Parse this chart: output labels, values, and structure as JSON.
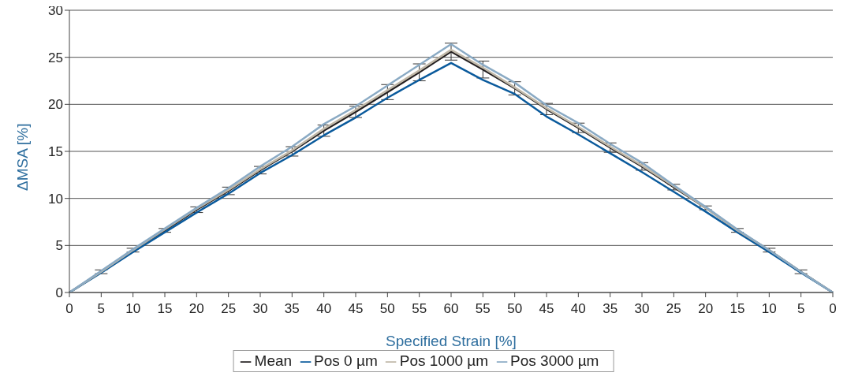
{
  "chart_data": {
    "type": "line",
    "xlabel": "Specified Strain [%]",
    "ylabel": "ΔMSA [%]",
    "categories": [
      "0",
      "5",
      "10",
      "15",
      "20",
      "25",
      "30",
      "35",
      "40",
      "45",
      "50",
      "55",
      "60",
      "55",
      "50",
      "45",
      "40",
      "35",
      "30",
      "25",
      "20",
      "15",
      "10",
      "5",
      "0"
    ],
    "series": [
      {
        "name": "Mean",
        "color": "#231f20",
        "values": [
          0,
          2.2,
          4.5,
          6.6,
          8.8,
          10.8,
          13.0,
          15.0,
          17.2,
          19.2,
          21.3,
          23.4,
          25.6,
          23.7,
          21.7,
          19.5,
          17.5,
          15.4,
          13.4,
          11.2,
          9.0,
          6.6,
          4.5,
          2.2,
          0
        ],
        "errors": [
          0,
          0.2,
          0.2,
          0.2,
          0.3,
          0.4,
          0.4,
          0.5,
          0.6,
          0.6,
          0.8,
          0.9,
          0.9,
          0.9,
          0.7,
          0.6,
          0.5,
          0.5,
          0.4,
          0.3,
          0.2,
          0.2,
          0.2,
          0.2,
          0
        ]
      },
      {
        "name": "Pos 0 µm",
        "color": "#0a5a9c",
        "values": [
          0,
          2.1,
          4.3,
          6.4,
          8.5,
          10.5,
          12.7,
          14.6,
          16.7,
          18.6,
          20.7,
          22.6,
          24.4,
          22.6,
          21.1,
          18.7,
          16.8,
          14.8,
          12.8,
          10.7,
          8.6,
          6.4,
          4.3,
          2.1,
          0
        ]
      },
      {
        "name": "Pos 1000 µm",
        "color": "#c0b8a8",
        "values": [
          0,
          2.2,
          4.5,
          6.7,
          8.9,
          10.9,
          13.1,
          15.1,
          17.4,
          19.4,
          21.5,
          23.6,
          25.8,
          23.9,
          21.8,
          19.6,
          17.6,
          15.5,
          13.5,
          11.3,
          9.0,
          6.6,
          4.5,
          2.2,
          0
        ]
      },
      {
        "name": "Pos 3000 µm",
        "color": "#8aaac4",
        "values": [
          0,
          2.3,
          4.6,
          6.8,
          9.0,
          11.1,
          13.4,
          15.5,
          17.9,
          19.8,
          22.0,
          24.2,
          26.4,
          24.2,
          22.3,
          19.9,
          18.0,
          15.8,
          13.8,
          11.4,
          9.1,
          6.7,
          4.5,
          2.2,
          0
        ]
      }
    ],
    "ylim": [
      0,
      30
    ],
    "yticks": [
      0,
      5,
      10,
      15,
      20,
      25,
      30
    ],
    "grid": "y",
    "legend": "bottom",
    "marker": "none",
    "line_style": "solid"
  }
}
